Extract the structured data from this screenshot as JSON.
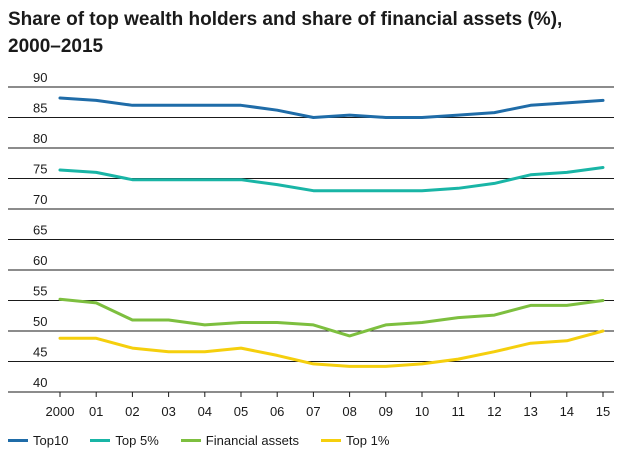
{
  "chart_data": {
    "type": "line",
    "title": "Share of top wealth holders and share of financial assets (%), 2000–2015",
    "xlabel": "",
    "ylabel": "",
    "x": [
      "2000",
      "01",
      "02",
      "03",
      "04",
      "05",
      "06",
      "07",
      "08",
      "09",
      "10",
      "11",
      "12",
      "13",
      "14",
      "15"
    ],
    "ylim": [
      40,
      90
    ],
    "yticks": [
      40,
      45,
      50,
      55,
      60,
      65,
      70,
      75,
      80,
      85,
      90
    ],
    "grid": true,
    "legend_position": "bottom",
    "series": [
      {
        "name": "Top10",
        "color": "#1f6ca8",
        "values": [
          88.2,
          87.8,
          87.0,
          87.0,
          87.0,
          87.0,
          86.2,
          85.0,
          85.4,
          85.0,
          85.0,
          85.4,
          85.8,
          87.0,
          87.4,
          87.8
        ]
      },
      {
        "name": "Top 5%",
        "color": "#19b5a6",
        "values": [
          76.4,
          76.0,
          74.8,
          74.8,
          74.8,
          74.8,
          74.0,
          73.0,
          73.0,
          73.0,
          73.0,
          73.4,
          74.2,
          75.6,
          76.0,
          76.8
        ]
      },
      {
        "name": "Financial assets",
        "color": "#7dbf3f",
        "values": [
          55.2,
          54.6,
          51.8,
          51.8,
          51.0,
          51.4,
          51.4,
          51.0,
          49.2,
          51.0,
          51.4,
          52.2,
          52.6,
          54.2,
          54.2,
          55.0
        ]
      },
      {
        "name": "Top 1%",
        "color": "#f5cf0d",
        "values": [
          48.8,
          48.8,
          47.2,
          46.6,
          46.6,
          47.2,
          46.0,
          44.6,
          44.2,
          44.2,
          44.6,
          45.4,
          46.6,
          48.0,
          48.4,
          50.0
        ]
      }
    ]
  }
}
